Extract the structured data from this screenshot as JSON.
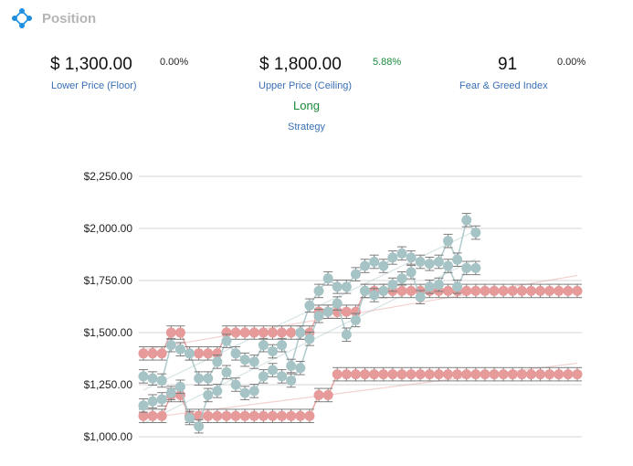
{
  "header": {
    "title": "Position",
    "icon": "network-icon"
  },
  "stats": {
    "floor": {
      "value": "$ 1,300.00",
      "change": "0.00%",
      "label": "Lower Price (Floor)"
    },
    "ceiling": {
      "value": "$ 1,800.00",
      "change": "5.88%",
      "label": "Upper Price (Ceiling)"
    },
    "fear_greed": {
      "value": "91",
      "change": "0.00%",
      "label": "Fear & Greed Index"
    },
    "strategy": {
      "value": "Long",
      "label": "Strategy"
    }
  },
  "colors": {
    "accent": "#1e8fe0",
    "label": "#3a6fb5",
    "positive": "#1a8a3a",
    "pink": "#e69a9a",
    "teal": "#a6c4c6",
    "error_bar": "#7d7d7d"
  },
  "chart_data": {
    "type": "line",
    "x": [
      1,
      2,
      3,
      4,
      5,
      6,
      7,
      8,
      9,
      10,
      11,
      12,
      13,
      14,
      15,
      16,
      17,
      18,
      19,
      20,
      21,
      22,
      23,
      24,
      25,
      26,
      27,
      28,
      29,
      30,
      31,
      32,
      33,
      34,
      35,
      36,
      37,
      38,
      39,
      40,
      41,
      42,
      43,
      44,
      45,
      46,
      47,
      48
    ],
    "ylim": [
      1000,
      2250
    ],
    "yticks": [
      "$1,000.00",
      "$1,250.00",
      "$1,500.00",
      "$1,750.00",
      "$2,000.00",
      "$2,250.00"
    ],
    "series": [
      {
        "role": "ceiling",
        "color": "#e69a9a",
        "values": [
          1400,
          1400,
          1400,
          1500,
          1500,
          1400,
          1400,
          1400,
          1400,
          1500,
          1500,
          1500,
          1500,
          1500,
          1500,
          1500,
          1500,
          1500,
          1500,
          1600,
          1600,
          1600,
          1600,
          1600,
          1700,
          1700,
          1700,
          1700,
          1700,
          1700,
          1700,
          1700,
          1700,
          1700,
          1700,
          1700,
          1700,
          1700,
          1700,
          1700,
          1700,
          1700,
          1700,
          1700,
          1700,
          1700,
          1700,
          1700
        ]
      },
      {
        "role": "floor",
        "color": "#e69a9a",
        "values": [
          1100,
          1100,
          1100,
          1200,
          1200,
          1100,
          1100,
          1100,
          1100,
          1100,
          1100,
          1100,
          1100,
          1100,
          1100,
          1100,
          1100,
          1100,
          1100,
          1200,
          1200,
          1300,
          1300,
          1300,
          1300,
          1300,
          1300,
          1300,
          1300,
          1300,
          1300,
          1300,
          1300,
          1300,
          1300,
          1300,
          1300,
          1300,
          1300,
          1300,
          1300,
          1300,
          1300,
          1300,
          1300,
          1300,
          1300,
          1300
        ]
      },
      {
        "role": "upper",
        "color": "#a6c4c6",
        "values": [
          1290,
          1280,
          1270,
          1440,
          1420,
          1400,
          1280,
          1280,
          1360,
          1460,
          1400,
          1370,
          1360,
          1440,
          1410,
          1440,
          1340,
          1500,
          1630,
          1700,
          1760,
          1720,
          1720,
          1780,
          1820,
          1840,
          1820,
          1860,
          1880,
          1860,
          1840,
          1830,
          1840,
          1940,
          1850,
          2040,
          1980,
          null,
          null,
          null,
          null,
          null,
          null,
          null,
          null,
          null,
          null,
          null
        ]
      },
      {
        "role": "lower",
        "color": "#a6c4c6",
        "values": [
          1150,
          1170,
          1180,
          1210,
          1240,
          1090,
          1050,
          1200,
          1220,
          1310,
          1250,
          1210,
          1220,
          1290,
          1320,
          1290,
          1270,
          1330,
          1470,
          1580,
          1600,
          1640,
          1490,
          1560,
          1700,
          1680,
          1700,
          1730,
          1760,
          1790,
          1670,
          1720,
          1730,
          1820,
          1720,
          1810,
          1810,
          null,
          null,
          null,
          null,
          null,
          null,
          null,
          null,
          null,
          null,
          null
        ]
      }
    ]
  }
}
